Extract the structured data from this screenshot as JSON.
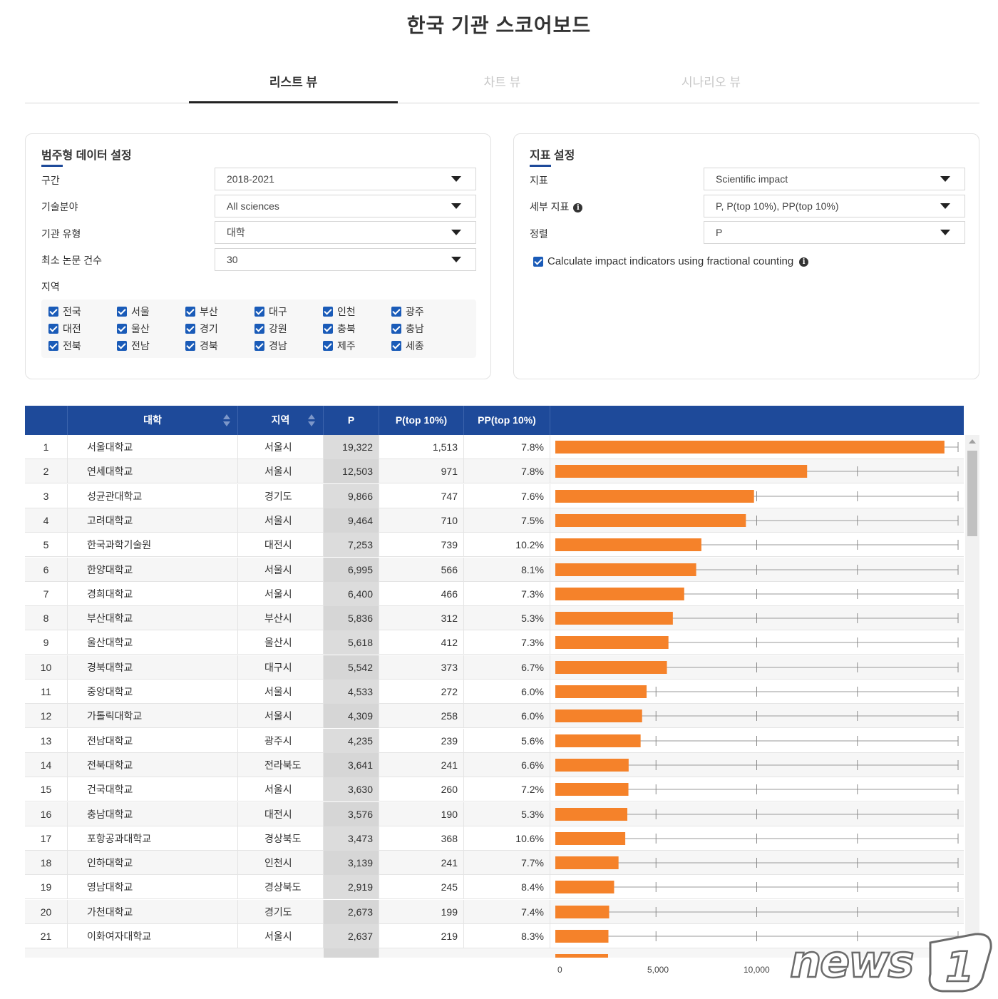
{
  "page": {
    "title": "한국 기관 스코어보드"
  },
  "tabs": [
    {
      "label": "리스트 뷰",
      "active": true
    },
    {
      "label": "차트 뷰",
      "active": false
    },
    {
      "label": "시나리오 뷰",
      "active": false
    }
  ],
  "left_panel": {
    "title": "범주형 데이터 설정",
    "fields": [
      {
        "label": "구간",
        "value": "2018-2021"
      },
      {
        "label": "기술분야",
        "value": "All sciences"
      },
      {
        "label": "기관 유형",
        "value": "대학"
      },
      {
        "label": "최소 논문 건수",
        "value": "30"
      }
    ],
    "region_label": "지역",
    "regions": [
      "전국",
      "서울",
      "부산",
      "대구",
      "인천",
      "광주",
      "대전",
      "울산",
      "경기",
      "강원",
      "충북",
      "충남",
      "전북",
      "전남",
      "경북",
      "경남",
      "제주",
      "세종"
    ]
  },
  "right_panel": {
    "title": "지표 설정",
    "fields": [
      {
        "label": "지표",
        "value": "Scientific impact"
      },
      {
        "label": "세부 지표",
        "value": "P, P(top 10%), PP(top 10%)"
      },
      {
        "label": "정렬",
        "value": "P"
      }
    ],
    "fractional_label": "Calculate impact indicators using fractional counting"
  },
  "table": {
    "columns": [
      "대학",
      "지역",
      "P",
      "P(top 10%)",
      "PP(top 10%)"
    ],
    "rows": [
      {
        "rank": "1",
        "name": "서울대학교",
        "region": "서울시",
        "p": "19,322",
        "ptop": "1,513",
        "pptop": "7.8%"
      },
      {
        "rank": "2",
        "name": "연세대학교",
        "region": "서울시",
        "p": "12,503",
        "ptop": "971",
        "pptop": "7.8%"
      },
      {
        "rank": "3",
        "name": "성균관대학교",
        "region": "경기도",
        "p": "9,866",
        "ptop": "747",
        "pptop": "7.6%"
      },
      {
        "rank": "4",
        "name": "고려대학교",
        "region": "서울시",
        "p": "9,464",
        "ptop": "710",
        "pptop": "7.5%"
      },
      {
        "rank": "5",
        "name": "한국과학기술원",
        "region": "대전시",
        "p": "7,253",
        "ptop": "739",
        "pptop": "10.2%"
      },
      {
        "rank": "6",
        "name": "한양대학교",
        "region": "서울시",
        "p": "6,995",
        "ptop": "566",
        "pptop": "8.1%"
      },
      {
        "rank": "7",
        "name": "경희대학교",
        "region": "서울시",
        "p": "6,400",
        "ptop": "466",
        "pptop": "7.3%"
      },
      {
        "rank": "8",
        "name": "부산대학교",
        "region": "부산시",
        "p": "5,836",
        "ptop": "312",
        "pptop": "5.3%"
      },
      {
        "rank": "9",
        "name": "울산대학교",
        "region": "울산시",
        "p": "5,618",
        "ptop": "412",
        "pptop": "7.3%"
      },
      {
        "rank": "10",
        "name": "경북대학교",
        "region": "대구시",
        "p": "5,542",
        "ptop": "373",
        "pptop": "6.7%"
      },
      {
        "rank": "11",
        "name": "중앙대학교",
        "region": "서울시",
        "p": "4,533",
        "ptop": "272",
        "pptop": "6.0%"
      },
      {
        "rank": "12",
        "name": "가톨릭대학교",
        "region": "서울시",
        "p": "4,309",
        "ptop": "258",
        "pptop": "6.0%"
      },
      {
        "rank": "13",
        "name": "전남대학교",
        "region": "광주시",
        "p": "4,235",
        "ptop": "239",
        "pptop": "5.6%"
      },
      {
        "rank": "14",
        "name": "전북대학교",
        "region": "전라북도",
        "p": "3,641",
        "ptop": "241",
        "pptop": "6.6%"
      },
      {
        "rank": "15",
        "name": "건국대학교",
        "region": "서울시",
        "p": "3,630",
        "ptop": "260",
        "pptop": "7.2%"
      },
      {
        "rank": "16",
        "name": "충남대학교",
        "region": "대전시",
        "p": "3,576",
        "ptop": "190",
        "pptop": "5.3%"
      },
      {
        "rank": "17",
        "name": "포항공과대학교",
        "region": "경상북도",
        "p": "3,473",
        "ptop": "368",
        "pptop": "10.6%"
      },
      {
        "rank": "18",
        "name": "인하대학교",
        "region": "인천시",
        "p": "3,139",
        "ptop": "241",
        "pptop": "7.7%"
      },
      {
        "rank": "19",
        "name": "영남대학교",
        "region": "경상북도",
        "p": "2,919",
        "ptop": "245",
        "pptop": "8.4%"
      },
      {
        "rank": "20",
        "name": "가천대학교",
        "region": "경기도",
        "p": "2,673",
        "ptop": "199",
        "pptop": "7.4%"
      },
      {
        "rank": "21",
        "name": "이화여자대학교",
        "region": "서울시",
        "p": "2,637",
        "ptop": "219",
        "pptop": "8.3%"
      }
    ]
  },
  "bar_chart": {
    "axis_ticks": [
      "0",
      "5,000",
      "10,000"
    ],
    "max": 20000,
    "bar_color": "#f5822a"
  },
  "watermark": {
    "brand": "news1"
  }
}
